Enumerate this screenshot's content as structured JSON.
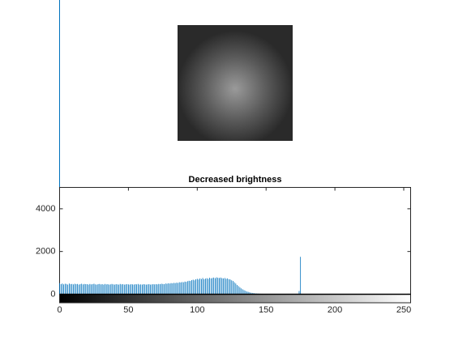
{
  "chart_data": {
    "type": "bar",
    "title": "Decreased brightness",
    "x": [
      0,
      1,
      2,
      3,
      4,
      5,
      6,
      7,
      8,
      9,
      10,
      11,
      12,
      13,
      14,
      15,
      16,
      17,
      18,
      19,
      20,
      21,
      22,
      23,
      24,
      25,
      26,
      27,
      28,
      29,
      30,
      31,
      32,
      33,
      34,
      35,
      36,
      37,
      38,
      39,
      40,
      41,
      42,
      43,
      44,
      45,
      46,
      47,
      48,
      49,
      50,
      51,
      52,
      53,
      54,
      55,
      56,
      57,
      58,
      59,
      60,
      61,
      62,
      63,
      64,
      65,
      66,
      67,
      68,
      69,
      70,
      71,
      72,
      73,
      74,
      75,
      76,
      77,
      78,
      79,
      80,
      81,
      82,
      83,
      84,
      85,
      86,
      87,
      88,
      89,
      90,
      91,
      92,
      93,
      94,
      95,
      96,
      97,
      98,
      99,
      100,
      101,
      102,
      103,
      104,
      105,
      106,
      107,
      108,
      109,
      110,
      111,
      112,
      113,
      114,
      115,
      116,
      117,
      118,
      119,
      120,
      121,
      122,
      123,
      124,
      125,
      126,
      127,
      128,
      129,
      130,
      131,
      132,
      133,
      134,
      135,
      136,
      137,
      138,
      139,
      140,
      141,
      142,
      143,
      144,
      145,
      146,
      147,
      148,
      149,
      150,
      151,
      152,
      153,
      154,
      155,
      156,
      157,
      158,
      159,
      160,
      161,
      162,
      163,
      164,
      165,
      166,
      167,
      168,
      169,
      170,
      171,
      172,
      173,
      174,
      175
    ],
    "values": [
      520,
      470,
      500,
      460,
      490,
      480,
      450,
      500,
      470,
      480,
      460,
      490,
      470,
      480,
      450,
      470,
      490,
      460,
      480,
      470,
      470,
      450,
      480,
      460,
      470,
      490,
      460,
      450,
      470,
      480,
      460,
      470,
      450,
      480,
      460,
      470,
      450,
      460,
      480,
      460,
      450,
      470,
      460,
      450,
      480,
      460,
      470,
      450,
      460,
      470,
      460,
      450,
      470,
      460,
      450,
      470,
      460,
      480,
      450,
      460,
      450,
      470,
      460,
      450,
      460,
      470,
      450,
      460,
      470,
      460,
      470,
      460,
      480,
      470,
      490,
      480,
      470,
      500,
      490,
      510,
      500,
      520,
      510,
      530,
      520,
      540,
      530,
      560,
      550,
      570,
      560,
      590,
      580,
      610,
      630,
      620,
      660,
      680,
      650,
      700,
      720,
      690,
      740,
      710,
      760,
      700,
      730,
      750,
      720,
      770,
      740,
      760,
      780,
      750,
      790,
      770,
      760,
      780,
      750,
      740,
      760,
      720,
      740,
      700,
      690,
      650,
      620,
      560,
      500,
      430,
      380,
      320,
      270,
      230,
      190,
      160,
      130,
      110,
      90,
      70,
      60,
      50,
      40,
      35,
      30,
      25,
      20,
      18,
      15,
      12,
      10,
      8,
      7,
      6,
      5,
      5,
      4,
      4,
      3,
      3,
      3,
      2,
      2,
      2,
      2,
      1,
      1,
      1,
      1,
      1,
      1,
      1,
      2,
      5,
      150,
      1750
    ],
    "color": "#0072bd",
    "xlim": [
      0,
      255
    ],
    "xticks": [
      0,
      50,
      100,
      150,
      200,
      250
    ],
    "ylim": [
      -400,
      5000
    ],
    "yticks": [
      0,
      2000,
      4000
    ]
  }
}
